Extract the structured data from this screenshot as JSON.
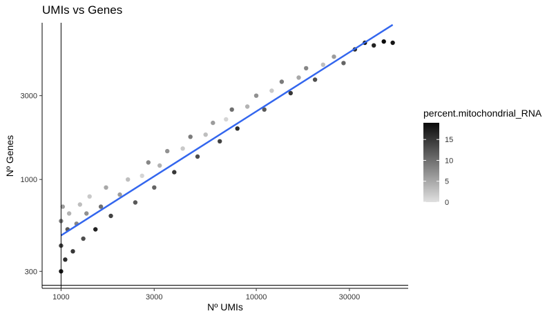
{
  "chart_data": {
    "type": "scatter",
    "title": "UMIs vs Genes",
    "xlabel": "Nº UMIs",
    "ylabel": "Nº Genes",
    "x_scale": "log10",
    "y_scale": "log10",
    "xlim": [
      800,
      60000
    ],
    "ylim": [
      240,
      7800
    ],
    "x_ticks": [
      {
        "value": 1000,
        "label": "1000"
      },
      {
        "value": 3000,
        "label": "3000"
      },
      {
        "value": 10000,
        "label": "10000"
      },
      {
        "value": 30000,
        "label": "30000"
      }
    ],
    "y_ticks": [
      {
        "value": 300,
        "label": "300"
      },
      {
        "value": 1000,
        "label": "1000"
      },
      {
        "value": 3000,
        "label": "3000"
      }
    ],
    "grid": false,
    "reference_lines": {
      "vertical_x": 1000,
      "horizontal_y": 250
    },
    "trend_line": {
      "method": "linear fit (log-log)",
      "color": "#3366ee",
      "points": [
        [
          1000,
          480
        ],
        [
          50000,
          7600
        ]
      ]
    },
    "color_by": {
      "variable": "percent.mitochondrial_RNA",
      "legend_title": "percent.mitochondrial_RNA",
      "low_color": "#e0e0e0",
      "high_color": "#0a0a0a",
      "range": [
        0,
        19
      ],
      "ticks": [
        {
          "value": 0,
          "label": "0"
        },
        {
          "value": 5,
          "label": "5"
        },
        {
          "value": 10,
          "label": "10"
        },
        {
          "value": 15,
          "label": "15"
        }
      ],
      "legend_position": "right"
    },
    "series": [
      {
        "points": [
          [
            1000,
            300,
            18
          ],
          [
            1000,
            420,
            14
          ],
          [
            1000,
            580,
            9
          ],
          [
            1020,
            700,
            6
          ],
          [
            1050,
            350,
            16
          ],
          [
            1080,
            520,
            12
          ],
          [
            1100,
            640,
            4
          ],
          [
            1150,
            390,
            15
          ],
          [
            1200,
            560,
            8
          ],
          [
            1250,
            720,
            3
          ],
          [
            1300,
            460,
            13
          ],
          [
            1350,
            640,
            7
          ],
          [
            1400,
            800,
            2
          ],
          [
            1500,
            520,
            17
          ],
          [
            1600,
            700,
            10
          ],
          [
            1700,
            900,
            5
          ],
          [
            1800,
            620,
            14
          ],
          [
            2000,
            820,
            6
          ],
          [
            2200,
            1000,
            3
          ],
          [
            2400,
            740,
            12
          ],
          [
            2600,
            1050,
            1
          ],
          [
            2800,
            1250,
            8
          ],
          [
            3000,
            900,
            11
          ],
          [
            3200,
            1200,
            4
          ],
          [
            3500,
            1450,
            7
          ],
          [
            3800,
            1100,
            15
          ],
          [
            4200,
            1500,
            2
          ],
          [
            4600,
            1750,
            9
          ],
          [
            5000,
            1350,
            13
          ],
          [
            5500,
            1800,
            3
          ],
          [
            6000,
            2100,
            6
          ],
          [
            6500,
            1650,
            14
          ],
          [
            7000,
            2200,
            1
          ],
          [
            7500,
            2500,
            10
          ],
          [
            8000,
            1950,
            16
          ],
          [
            9000,
            2600,
            4
          ],
          [
            10000,
            3000,
            7
          ],
          [
            11000,
            2500,
            12
          ],
          [
            12000,
            3200,
            2
          ],
          [
            13500,
            3600,
            9
          ],
          [
            15000,
            3100,
            15
          ],
          [
            16500,
            3800,
            5
          ],
          [
            18000,
            4300,
            8
          ],
          [
            20000,
            3700,
            13
          ],
          [
            22000,
            4500,
            3
          ],
          [
            25000,
            5000,
            6
          ],
          [
            28000,
            4600,
            11
          ],
          [
            32000,
            5500,
            16
          ],
          [
            36000,
            6000,
            18
          ],
          [
            40000,
            5800,
            17
          ],
          [
            45000,
            6100,
            19
          ],
          [
            50000,
            6000,
            18
          ]
        ]
      }
    ]
  }
}
